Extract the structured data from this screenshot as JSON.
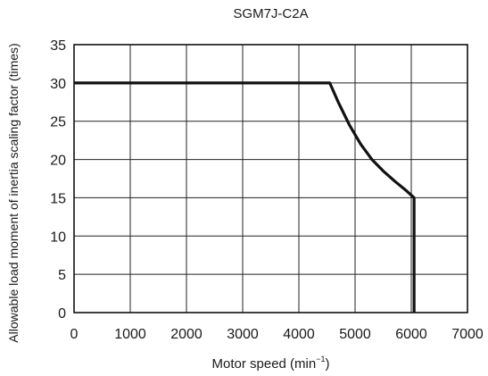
{
  "chart_data": {
    "type": "line",
    "title": "SGM7J-C2A",
    "xlabel_text": "Motor speed (min",
    "xlabel_sup": "−1",
    "xlabel_tail": ")",
    "ylabel": "Allowable load moment of inertia scaling factor (times)",
    "xlim": [
      0,
      7000
    ],
    "ylim": [
      0,
      35
    ],
    "xticks": [
      0,
      1000,
      2000,
      3000,
      4000,
      5000,
      6000,
      7000
    ],
    "yticks": [
      0,
      5,
      10,
      15,
      20,
      25,
      30,
      35
    ],
    "xtick_labels": [
      "0",
      "1000",
      "2000",
      "3000",
      "4000",
      "5000",
      "6000",
      "7000"
    ],
    "ytick_labels": [
      "0",
      "5",
      "10",
      "15",
      "20",
      "25",
      "30",
      "35"
    ],
    "grid": true,
    "series": [
      {
        "x": [
          0,
          4550,
          4700,
          4900,
          5100,
          5300,
          5500,
          5700,
          5900,
          6050,
          6050
        ],
        "y": [
          30,
          30,
          27.5,
          24.5,
          22.0,
          20.0,
          18.5,
          17.2,
          16.0,
          15,
          0
        ]
      }
    ],
    "line_color": "#111111",
    "grid_color": "#222222"
  }
}
